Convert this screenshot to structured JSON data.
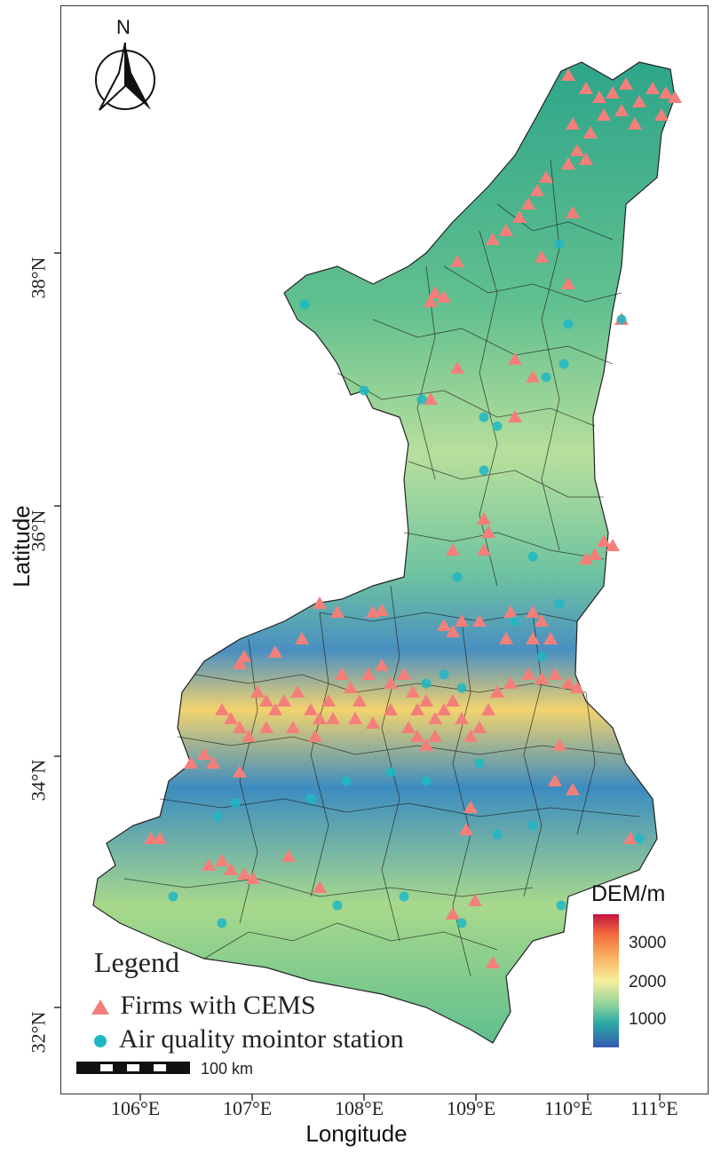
{
  "axes": {
    "x_title": "Longitude",
    "y_title": "Latitude",
    "lon_ticks": [
      "106°E",
      "107°E",
      "108°E",
      "109°E",
      "110°E",
      "111°E"
    ],
    "lat_ticks": [
      "38°N",
      "36°N",
      "34°N",
      "32°N"
    ]
  },
  "north_arrow": {
    "letter": "N",
    "icon": "north-arrow-icon"
  },
  "legend": {
    "title": "Legend",
    "items": [
      {
        "label": "Firms with CEMS",
        "symbol": "triangle",
        "color": "#f47f7a"
      },
      {
        "label": "Air quality mointor station",
        "symbol": "circle",
        "color": "#1fb7c4"
      }
    ]
  },
  "colorbar": {
    "title": "DEM/m",
    "ticks": [
      "3000",
      "2000",
      "1000"
    ],
    "colors": [
      "#c2143e",
      "#f36a3c",
      "#f9b160",
      "#f6ef9a",
      "#9bd79b",
      "#2aa9a4",
      "#3558b2"
    ]
  },
  "scale_bar": {
    "label": "100 km"
  }
}
